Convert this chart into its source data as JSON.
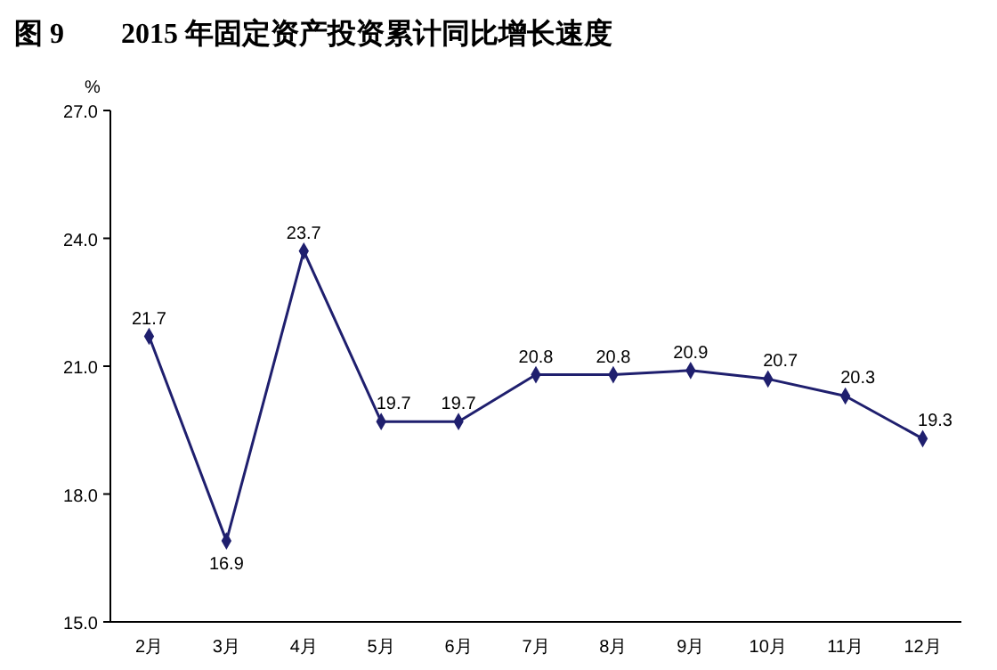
{
  "chart_data": {
    "type": "line",
    "title": "图 9　　2015 年固定资产投资累计同比增长速度",
    "ylabel": "%",
    "categories": [
      "2月",
      "3月",
      "4月",
      "5月",
      "6月",
      "7月",
      "8月",
      "9月",
      "10月",
      "11月",
      "12月"
    ],
    "series": [
      {
        "color": "#1f1f6e",
        "values": [
          21.7,
          16.9,
          23.7,
          19.7,
          19.7,
          20.8,
          20.8,
          20.9,
          20.7,
          20.3,
          19.3
        ]
      }
    ],
    "ylim": [
      15,
      27
    ],
    "yticks": [
      {
        "value": 15,
        "label": "15.0"
      },
      {
        "value": 18,
        "label": "18.0"
      },
      {
        "value": 21,
        "label": "21.0"
      },
      {
        "value": 24,
        "label": "24.0"
      },
      {
        "value": 27,
        "label": "27.0"
      }
    ],
    "data_labels": true,
    "marker": "diamond",
    "line_style": "solid",
    "grid": false
  }
}
